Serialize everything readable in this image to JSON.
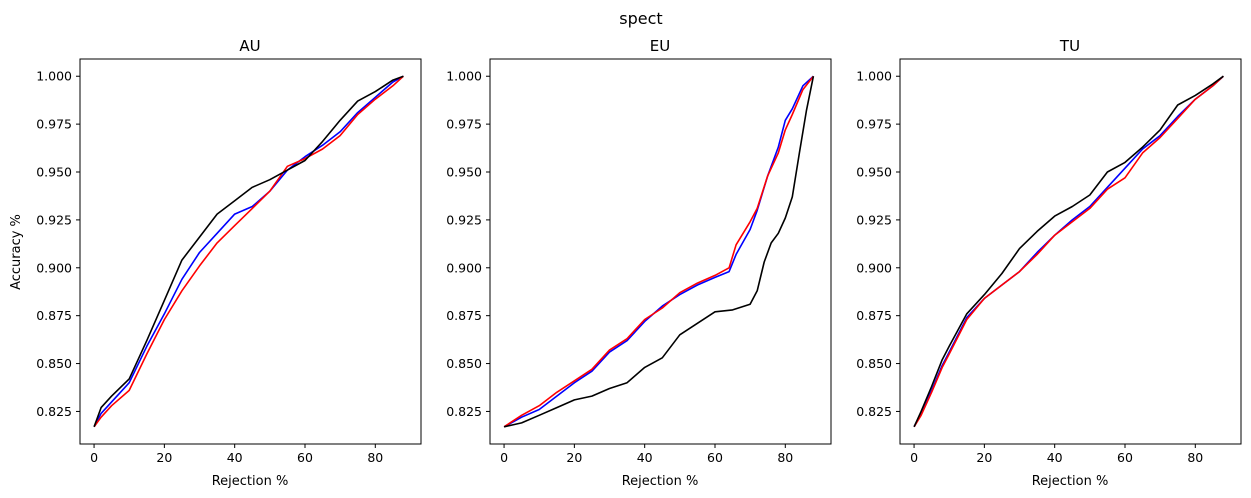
{
  "chart_data": {
    "suptitle": "spect",
    "panels": [
      {
        "type": "line",
        "title": "AU",
        "xlabel": "Rejection %",
        "ylabel": "Accuracy %",
        "xlim": [
          -4,
          93
        ],
        "ylim": [
          0.808,
          1.009
        ],
        "xticks": [
          0,
          20,
          40,
          60,
          80
        ],
        "xtick_labels": [
          "0",
          "20",
          "40",
          "60",
          "80"
        ],
        "yticks": [
          0.825,
          0.85,
          0.875,
          0.9,
          0.925,
          0.95,
          0.975,
          1.0
        ],
        "ytick_labels": [
          "0.825",
          "0.850",
          "0.875",
          "0.900",
          "0.925",
          "0.950",
          "0.975",
          "1.000"
        ],
        "grid": false,
        "series": [
          {
            "color": "#0000ff",
            "x": [
              0,
              2,
              5,
              10,
              15,
              20,
              25,
              30,
              35,
              40,
              45,
              50,
              55,
              60,
              65,
              70,
              75,
              80,
              85,
              88
            ],
            "y": [
              0.817,
              0.824,
              0.83,
              0.84,
              0.859,
              0.876,
              0.894,
              0.908,
              0.918,
              0.928,
              0.932,
              0.94,
              0.951,
              0.958,
              0.964,
              0.971,
              0.981,
              0.989,
              0.997,
              1.0
            ]
          },
          {
            "color": "#ff0000",
            "x": [
              0,
              2,
              5,
              10,
              15,
              20,
              25,
              30,
              35,
              40,
              45,
              50,
              55,
              60,
              65,
              70,
              75,
              80,
              85,
              88
            ],
            "y": [
              0.817,
              0.822,
              0.828,
              0.836,
              0.855,
              0.873,
              0.888,
              0.901,
              0.913,
              0.922,
              0.931,
              0.94,
              0.953,
              0.957,
              0.962,
              0.969,
              0.98,
              0.988,
              0.995,
              1.0
            ]
          },
          {
            "color": "#000000",
            "x": [
              0,
              2,
              5,
              10,
              15,
              20,
              25,
              30,
              35,
              40,
              45,
              50,
              55,
              60,
              65,
              70,
              75,
              80,
              85,
              88
            ],
            "y": [
              0.817,
              0.827,
              0.833,
              0.842,
              0.862,
              0.883,
              0.904,
              0.916,
              0.928,
              0.935,
              0.942,
              0.946,
              0.951,
              0.956,
              0.966,
              0.977,
              0.987,
              0.992,
              0.998,
              1.0
            ]
          }
        ]
      },
      {
        "type": "line",
        "title": "EU",
        "xlabel": "Rejection %",
        "ylabel": "",
        "xlim": [
          -4,
          93
        ],
        "ylim": [
          0.808,
          1.009
        ],
        "xticks": [
          0,
          20,
          40,
          60,
          80
        ],
        "xtick_labels": [
          "0",
          "20",
          "40",
          "60",
          "80"
        ],
        "yticks": [
          0.825,
          0.85,
          0.875,
          0.9,
          0.925,
          0.95,
          0.975,
          1.0
        ],
        "ytick_labels": [
          "0.825",
          "0.850",
          "0.875",
          "0.900",
          "0.925",
          "0.950",
          "0.975",
          "1.000"
        ],
        "grid": false,
        "series": [
          {
            "color": "#0000ff",
            "x": [
              0,
              5,
              10,
              15,
              20,
              25,
              30,
              35,
              40,
              45,
              50,
              55,
              60,
              64,
              66,
              70,
              72,
              75,
              78,
              80,
              82,
              85,
              88
            ],
            "y": [
              0.817,
              0.822,
              0.826,
              0.833,
              0.84,
              0.846,
              0.856,
              0.862,
              0.872,
              0.88,
              0.886,
              0.891,
              0.895,
              0.898,
              0.907,
              0.92,
              0.93,
              0.948,
              0.963,
              0.977,
              0.983,
              0.995,
              1.0
            ]
          },
          {
            "color": "#ff0000",
            "x": [
              0,
              5,
              10,
              15,
              20,
              25,
              30,
              35,
              40,
              45,
              50,
              55,
              60,
              64,
              66,
              70,
              72,
              75,
              78,
              80,
              82,
              85,
              88
            ],
            "y": [
              0.817,
              0.823,
              0.828,
              0.835,
              0.841,
              0.847,
              0.857,
              0.863,
              0.873,
              0.879,
              0.887,
              0.892,
              0.896,
              0.9,
              0.912,
              0.924,
              0.931,
              0.948,
              0.96,
              0.972,
              0.98,
              0.993,
              1.0
            ]
          },
          {
            "color": "#000000",
            "x": [
              0,
              5,
              10,
              15,
              20,
              25,
              30,
              35,
              40,
              45,
              50,
              55,
              60,
              65,
              70,
              72,
              74,
              76,
              78,
              80,
              82,
              84,
              86,
              88
            ],
            "y": [
              0.817,
              0.819,
              0.823,
              0.827,
              0.831,
              0.833,
              0.837,
              0.84,
              0.848,
              0.853,
              0.865,
              0.871,
              0.877,
              0.878,
              0.881,
              0.888,
              0.903,
              0.913,
              0.918,
              0.926,
              0.937,
              0.96,
              0.982,
              1.0
            ]
          }
        ]
      },
      {
        "type": "line",
        "title": "TU",
        "xlabel": "Rejection %",
        "ylabel": "",
        "xlim": [
          -4,
          93
        ],
        "ylim": [
          0.808,
          1.009
        ],
        "xticks": [
          0,
          20,
          40,
          60,
          80
        ],
        "xtick_labels": [
          "0",
          "20",
          "40",
          "60",
          "80"
        ],
        "yticks": [
          0.825,
          0.85,
          0.875,
          0.9,
          0.925,
          0.95,
          0.975,
          1.0
        ],
        "ytick_labels": [
          "0.825",
          "0.850",
          "0.875",
          "0.900",
          "0.925",
          "0.950",
          "0.975",
          "1.000"
        ],
        "grid": false,
        "series": [
          {
            "color": "#0000ff",
            "x": [
              0,
              2,
              5,
              8,
              10,
              15,
              20,
              25,
              30,
              35,
              40,
              45,
              50,
              55,
              60,
              65,
              70,
              75,
              80,
              85,
              88
            ],
            "y": [
              0.817,
              0.824,
              0.836,
              0.849,
              0.856,
              0.874,
              0.884,
              0.891,
              0.898,
              0.908,
              0.917,
              0.925,
              0.932,
              0.942,
              0.952,
              0.962,
              0.969,
              0.979,
              0.988,
              0.995,
              1.0
            ]
          },
          {
            "color": "#ff0000",
            "x": [
              0,
              2,
              5,
              8,
              10,
              15,
              20,
              25,
              30,
              35,
              40,
              45,
              50,
              55,
              60,
              65,
              70,
              75,
              80,
              85,
              88
            ],
            "y": [
              0.817,
              0.823,
              0.835,
              0.848,
              0.855,
              0.873,
              0.884,
              0.891,
              0.898,
              0.907,
              0.917,
              0.924,
              0.931,
              0.941,
              0.947,
              0.96,
              0.968,
              0.978,
              0.988,
              0.995,
              1.0
            ]
          },
          {
            "color": "#000000",
            "x": [
              0,
              2,
              5,
              8,
              10,
              15,
              20,
              25,
              30,
              35,
              40,
              45,
              50,
              55,
              60,
              65,
              70,
              75,
              80,
              85,
              88
            ],
            "y": [
              0.817,
              0.825,
              0.838,
              0.852,
              0.859,
              0.876,
              0.886,
              0.897,
              0.91,
              0.919,
              0.927,
              0.932,
              0.938,
              0.95,
              0.955,
              0.963,
              0.972,
              0.985,
              0.99,
              0.996,
              1.0
            ]
          }
        ]
      }
    ]
  }
}
